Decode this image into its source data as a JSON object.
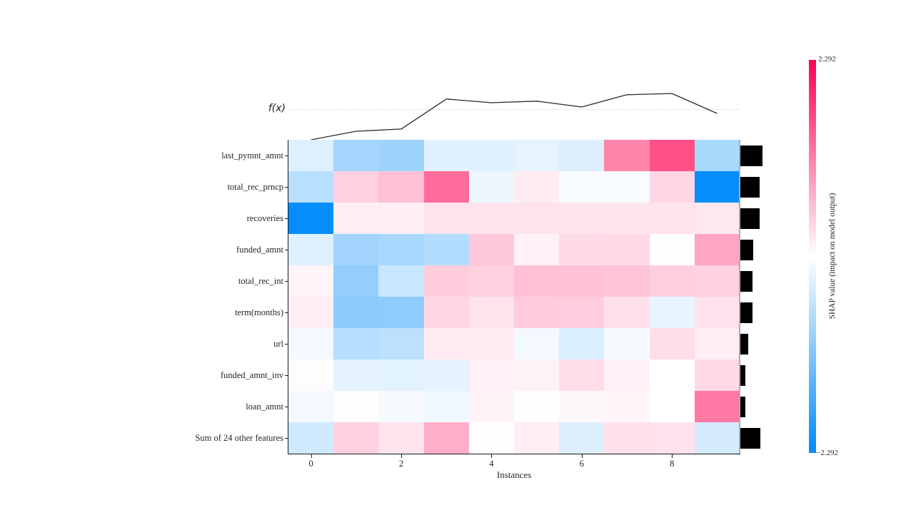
{
  "figure": {
    "background": "#ffffff",
    "fx_label": "f(x)",
    "x_axis": {
      "label": "Instances",
      "ticks": [
        "0",
        "2",
        "4",
        "6",
        "8"
      ]
    },
    "colorbar": {
      "max_label": "2.292",
      "min_label": "−2.292",
      "axis_label": "SHAP value (impact on model output)",
      "positive_color": "#ff0051",
      "negative_color": "#008bfb"
    }
  },
  "chart_data": {
    "type": "heatmap",
    "title": "SHAP heatmap plot",
    "xlabel": "Instances",
    "x": [
      0,
      1,
      2,
      3,
      4,
      5,
      6,
      7,
      8,
      9
    ],
    "x_ticks": [
      0,
      2,
      4,
      6,
      8
    ],
    "value_range": [
      -2.292,
      2.292
    ],
    "colormap": {
      "negative": "#008bfb",
      "zero": "#ffffff",
      "positive": "#ff0051"
    },
    "legend_label": "SHAP value (impact on model output)",
    "features": [
      "last_pymnt_amnt",
      "total_rec_prncp",
      "recoveries",
      "funded_amnt",
      "total_rec_int",
      "term(months)",
      "url",
      "funded_amnt_inv",
      "loan_amnt",
      "Sum of 24 other features"
    ],
    "shap_values": [
      [
        -0.3,
        -0.83,
        -0.87,
        -0.27,
        -0.28,
        -0.22,
        -0.31,
        1.1,
        1.57,
        -0.76
      ],
      [
        -0.64,
        0.42,
        0.57,
        1.32,
        -0.15,
        0.17,
        -0.06,
        -0.06,
        0.36,
        -2.26
      ],
      [
        -2.26,
        0.15,
        0.15,
        0.25,
        0.25,
        0.25,
        0.25,
        0.25,
        0.25,
        0.22
      ],
      [
        -0.3,
        -0.84,
        -0.78,
        -0.68,
        0.49,
        0.13,
        0.32,
        0.34,
        -0.01,
        0.8
      ],
      [
        0.09,
        -0.96,
        -0.49,
        0.46,
        0.41,
        0.57,
        0.55,
        0.53,
        0.43,
        0.41
      ],
      [
        0.14,
        -1.03,
        -1.01,
        0.36,
        0.25,
        0.48,
        0.45,
        0.28,
        -0.21,
        0.26
      ],
      [
        -0.11,
        -0.66,
        -0.6,
        0.19,
        0.18,
        -0.11,
        -0.34,
        -0.08,
        0.3,
        0.15
      ],
      [
        0.03,
        -0.24,
        -0.26,
        -0.24,
        0.13,
        0.12,
        0.31,
        0.13,
        0.0,
        0.33
      ],
      [
        -0.11,
        -0.01,
        -0.07,
        -0.14,
        0.11,
        0.01,
        0.06,
        0.08,
        0.0,
        1.2
      ],
      [
        -0.43,
        0.41,
        0.24,
        0.73,
        0.02,
        0.14,
        -0.31,
        0.27,
        0.26,
        -0.39
      ]
    ],
    "feature_importance_rel": [
      1.0,
      0.89,
      0.89,
      0.6,
      0.57,
      0.57,
      0.36,
      0.22,
      0.24,
      0.92
    ],
    "fx_line": {
      "label": "f(x)",
      "values": [
        -1.0,
        -0.72,
        -0.65,
        0.33,
        0.21,
        0.26,
        0.07,
        0.47,
        0.51,
        -0.14
      ]
    }
  }
}
